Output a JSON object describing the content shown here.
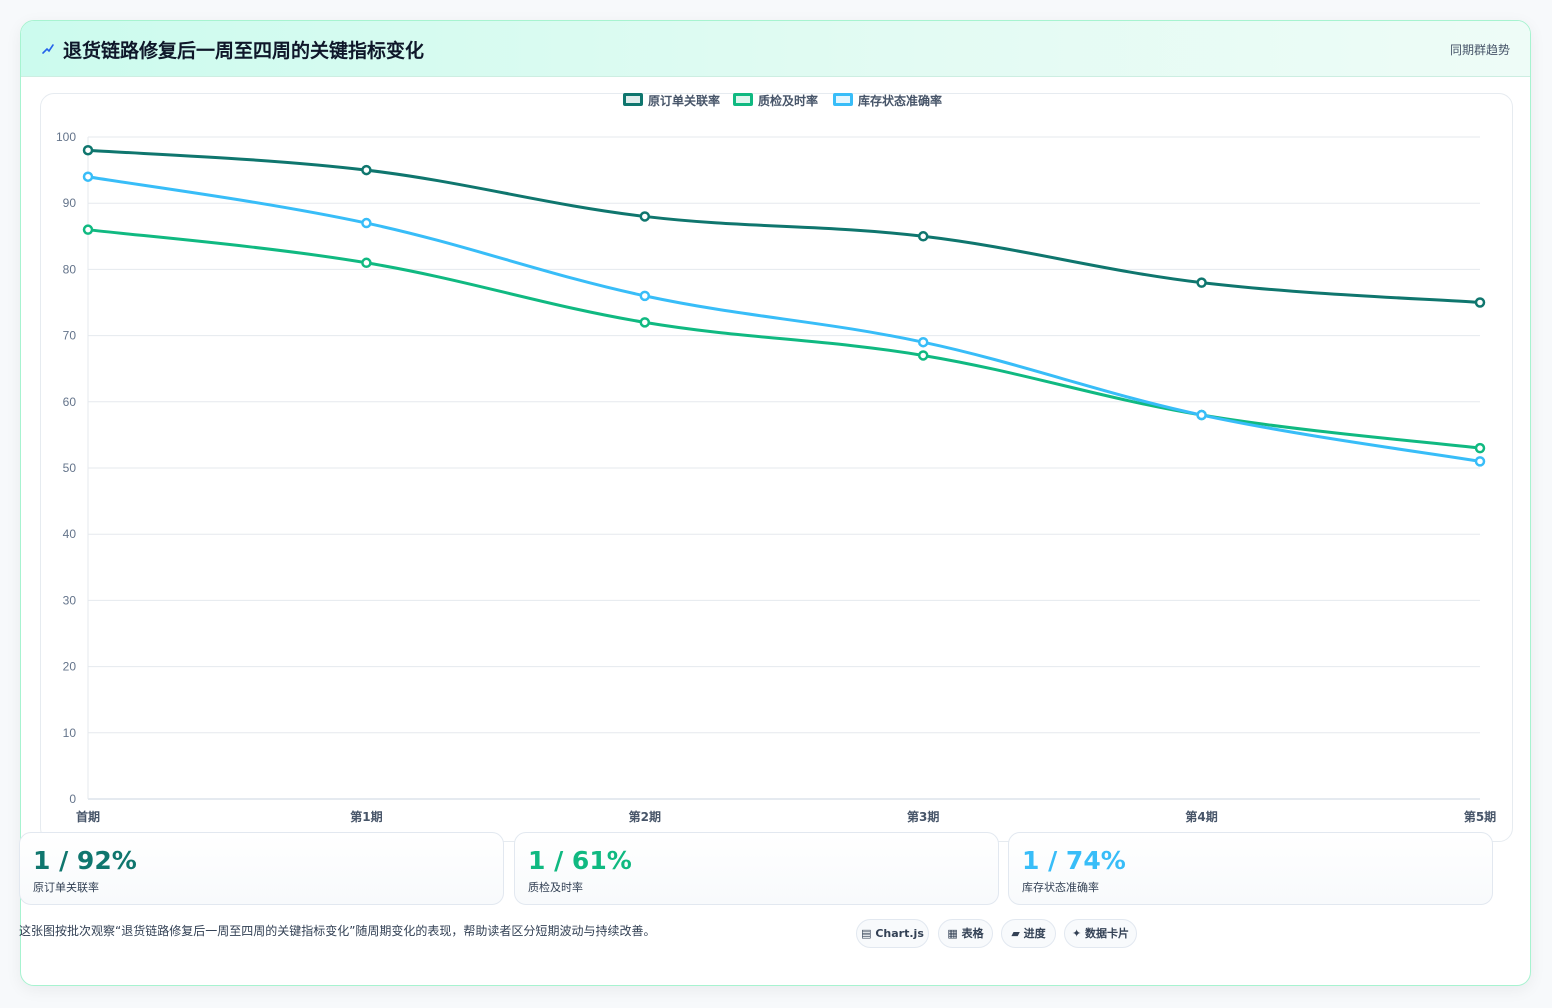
{
  "header": {
    "title": "退货链路修复后一周至四周的关键指标变化",
    "badge": "同期群趋势"
  },
  "chart_data": {
    "type": "line",
    "title": "",
    "xlabel": "",
    "ylabel": "",
    "categories": [
      "首期",
      "第1期",
      "第2期",
      "第3期",
      "第4期",
      "第5期"
    ],
    "ylim": [
      0,
      100
    ],
    "yticks": [
      0,
      10,
      20,
      30,
      40,
      50,
      60,
      70,
      80,
      90,
      100
    ],
    "grid": true,
    "legend_position": "top-center",
    "series": [
      {
        "name": "原订单关联率",
        "color": "#0f766e",
        "values": [
          98,
          95,
          88,
          85,
          78,
          75
        ]
      },
      {
        "name": "质检及时率",
        "color": "#10b981",
        "values": [
          86,
          81,
          72,
          67,
          58,
          53
        ]
      },
      {
        "name": "库存状态准确率",
        "color": "#38bdf8",
        "values": [
          94,
          87,
          76,
          69,
          58,
          51
        ]
      }
    ]
  },
  "stats": [
    {
      "value": "1 / 92%",
      "label": "原订单关联率",
      "color": "#0f766e"
    },
    {
      "value": "1 / 61%",
      "label": "质检及时率",
      "color": "#10b981"
    },
    {
      "value": "1 / 74%",
      "label": "库存状态准确率",
      "color": "#38bdf8"
    }
  ],
  "footer": {
    "note": "这张图按批次观察“退货链路修复后一周至四周的关键指标变化”随周期变化的表现，帮助读者区分短期波动与持续改善。",
    "tags": [
      {
        "icon": "chart-icon",
        "label": "Chart.js"
      },
      {
        "icon": "table-icon",
        "label": "表格"
      },
      {
        "icon": "progress-icon",
        "label": "进度"
      },
      {
        "icon": "sparkle-icon",
        "label": "数据卡片"
      }
    ]
  }
}
